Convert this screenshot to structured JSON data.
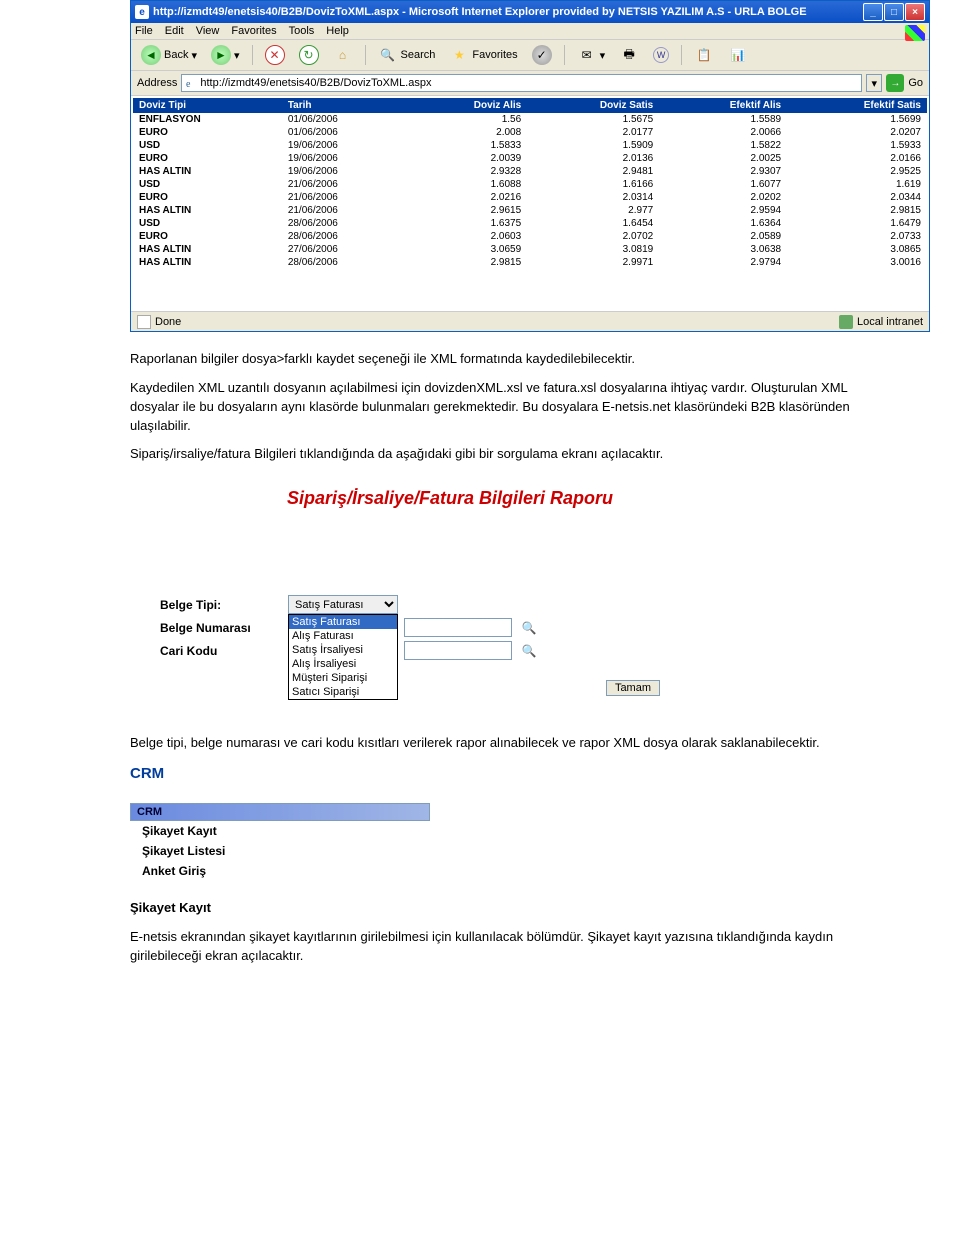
{
  "ie": {
    "title": "http://izmdt49/enetsis40/B2B/DovizToXML.aspx - Microsoft Internet Explorer provided by NETSIS YAZILIM A.S - URLA BOLGE",
    "menus": [
      "File",
      "Edit",
      "View",
      "Favorites",
      "Tools",
      "Help"
    ],
    "back": "Back",
    "search": "Search",
    "favorites": "Favorites",
    "addr_label": "Address",
    "addr_value": "http://izmdt49/enetsis40/B2B/DovizToXML.aspx",
    "go": "Go",
    "status_done": "Done",
    "status_zone": "Local intranet"
  },
  "table": {
    "headers": [
      "Doviz Tipi",
      "Tarih",
      "Doviz Alis",
      "Doviz Satis",
      "Efektif Alis",
      "Efektif Satis"
    ],
    "rows": [
      [
        "ENFLASYON",
        "01/06/2006",
        "1.56",
        "1.5675",
        "1.5589",
        "1.5699"
      ],
      [
        "EURO",
        "01/06/2006",
        "2.008",
        "2.0177",
        "2.0066",
        "2.0207"
      ],
      [
        "USD",
        "19/06/2006",
        "1.5833",
        "1.5909",
        "1.5822",
        "1.5933"
      ],
      [
        "EURO",
        "19/06/2006",
        "2.0039",
        "2.0136",
        "2.0025",
        "2.0166"
      ],
      [
        "HAS ALTIN",
        "19/06/2006",
        "2.9328",
        "2.9481",
        "2.9307",
        "2.9525"
      ],
      [
        "USD",
        "21/06/2006",
        "1.6088",
        "1.6166",
        "1.6077",
        "1.619"
      ],
      [
        "EURO",
        "21/06/2006",
        "2.0216",
        "2.0314",
        "2.0202",
        "2.0344"
      ],
      [
        "HAS ALTIN",
        "21/06/2006",
        "2.9615",
        "2.977",
        "2.9594",
        "2.9815"
      ],
      [
        "USD",
        "28/06/2006",
        "1.6375",
        "1.6454",
        "1.6364",
        "1.6479"
      ],
      [
        "EURO",
        "28/06/2006",
        "2.0603",
        "2.0702",
        "2.0589",
        "2.0733"
      ],
      [
        "HAS ALTIN",
        "27/06/2006",
        "3.0659",
        "3.0819",
        "3.0638",
        "3.0865"
      ],
      [
        "HAS ALTIN",
        "28/06/2006",
        "2.9815",
        "2.9971",
        "2.9794",
        "3.0016"
      ]
    ]
  },
  "txt": {
    "p1": "Raporlanan bilgiler dosya>farklı kaydet seçeneği ile XML formatında kaydedilebilecektir.",
    "p2": "Kaydedilen XML uzantılı dosyanın açılabilmesi için dovizdenXML.xsl ve fatura.xsl dosyalarına ihtiyaç vardır. Oluşturulan XML dosyalar ile bu dosyaların aynı klasörde bulunmaları gerekmektedir. Bu dosyalara E-netsis.net klasöründeki B2B klasöründen ulaşılabilir.",
    "p3": "Sipariş/irsaliye/fatura Bilgileri tıklandığında da aşağıdaki gibi bir sorgulama ekranı açılacaktır.",
    "p4": "Belge tipi, belge numarası ve cari kodu kısıtları verilerek rapor alınabilecek ve rapor XML dosya olarak saklanabilecektir.",
    "crm": "CRM",
    "sikayet_h": "Şikayet Kayıt",
    "p5": "E-netsis ekranından şikayet kayıtlarının girilebilmesi için kullanılacak bölümdür. Şikayet kayıt yazısına tıklandığında kaydın girilebileceği ekran açılacaktır."
  },
  "report": {
    "title": "Sipariş/İrsaliye/Fatura Bilgileri Raporu",
    "lbl_tip": "Belge Tipi:",
    "lbl_num": "Belge Numarası",
    "lbl_cari": "Cari Kodu",
    "sel_value": "Satış Faturası",
    "options": [
      "Satış Faturası",
      "Alış Faturası",
      "Satış İrsaliyesi",
      "Alış İrsaliyesi",
      "Müşteri Siparişi",
      "Satıcı Siparişi"
    ],
    "submit": "Tamam"
  },
  "crm_menu": {
    "header": "CRM",
    "items": [
      "Şikayet Kayıt",
      "Şikayet Listesi",
      "Anket Giriş"
    ]
  }
}
